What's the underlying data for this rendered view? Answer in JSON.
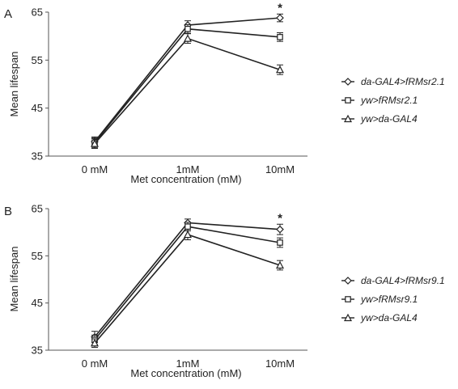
{
  "chart_data": [
    {
      "type": "line",
      "panel_label": "A",
      "categories": [
        "0 mM",
        "1mM",
        "10mM"
      ],
      "xlabel": "Met concentration  (mM)",
      "ylabel": "Mean lifespan",
      "ylim": [
        35,
        65
      ],
      "yticks": [
        35,
        45,
        55,
        65
      ],
      "grid": false,
      "legend_position": "right",
      "annotations": [
        {
          "text": "*",
          "category": "10mM"
        }
      ],
      "series": [
        {
          "name": "da-GAL4>fRMsr2.1",
          "marker": "diamond",
          "values": [
            38.0,
            62.3,
            63.8
          ],
          "errors": [
            1.0,
            0.9,
            0.8
          ]
        },
        {
          "name": "yw>fRMsr2.1",
          "marker": "square",
          "values": [
            37.8,
            61.5,
            59.8
          ],
          "errors": [
            1.0,
            0.9,
            0.9
          ]
        },
        {
          "name": "yw>da-GAL4",
          "marker": "triangle",
          "values": [
            37.6,
            59.5,
            53.0
          ],
          "errors": [
            1.0,
            1.0,
            1.0
          ]
        }
      ]
    },
    {
      "type": "line",
      "panel_label": "B",
      "categories": [
        "0 mM",
        "1mM",
        "10mM"
      ],
      "xlabel": "Met concentration  (mM)",
      "ylabel": "Mean lifespan",
      "ylim": [
        35,
        65
      ],
      "yticks": [
        35,
        45,
        55,
        65
      ],
      "grid": false,
      "legend_position": "right",
      "annotations": [
        {
          "text": "*",
          "category": "10mM"
        }
      ],
      "series": [
        {
          "name": "da-GAL4>fRMsr9.1",
          "marker": "diamond",
          "values": [
            37.8,
            62.0,
            60.6
          ],
          "errors": [
            1.2,
            0.8,
            1.1
          ]
        },
        {
          "name": "yw>fRMsr9.1",
          "marker": "square",
          "values": [
            37.2,
            61.2,
            57.8
          ],
          "errors": [
            1.0,
            0.9,
            1.0
          ]
        },
        {
          "name": "yw>da-GAL4",
          "marker": "triangle",
          "values": [
            36.5,
            59.5,
            53.0
          ],
          "errors": [
            0.9,
            1.1,
            1.0
          ]
        }
      ]
    }
  ]
}
